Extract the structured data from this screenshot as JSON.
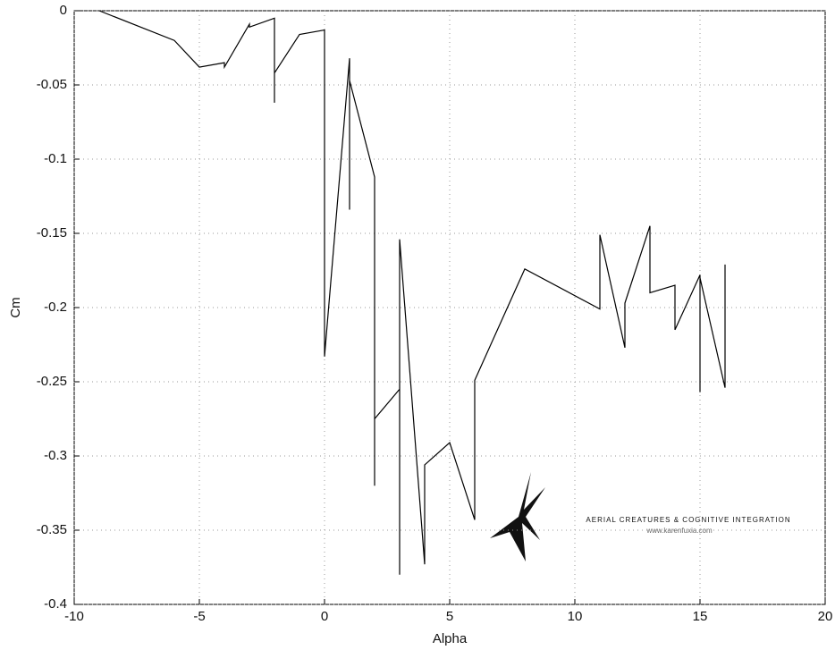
{
  "chart_data": {
    "type": "line",
    "xlabel": "Alpha",
    "ylabel": "Cm",
    "x": [
      -9,
      -6,
      -5,
      -4,
      -4,
      -3,
      -3,
      -2,
      -2,
      -2,
      -1,
      0,
      0,
      1,
      1,
      1,
      2,
      2,
      2,
      3,
      3,
      3,
      4,
      4,
      5,
      6,
      6,
      8,
      11,
      11,
      12,
      12,
      13,
      13,
      14,
      14,
      15,
      15,
      15,
      16,
      16
    ],
    "values": [
      0,
      -0.02,
      -0.038,
      -0.035,
      -0.038,
      -0.009,
      -0.011,
      -0.005,
      -0.062,
      -0.042,
      -0.016,
      -0.013,
      -0.233,
      -0.032,
      -0.134,
      -0.047,
      -0.112,
      -0.32,
      -0.275,
      -0.255,
      -0.38,
      -0.154,
      -0.373,
      -0.306,
      -0.291,
      -0.343,
      -0.249,
      -0.174,
      -0.201,
      -0.151,
      -0.227,
      -0.197,
      -0.145,
      -0.19,
      -0.185,
      -0.215,
      -0.178,
      -0.257,
      -0.18,
      -0.254,
      -0.171
    ],
    "color": "#000000",
    "xlim": [
      -10,
      20
    ],
    "xticks": [
      -10,
      -5,
      0,
      5,
      10,
      15,
      20
    ],
    "ylim": [
      -0.4,
      0
    ],
    "yticks": [
      -0.4,
      -0.35,
      -0.3,
      -0.25,
      -0.2,
      -0.15,
      -0.1,
      -0.05,
      0
    ],
    "grid": true,
    "annotations": [
      "AERIAL CREATURES & COGNITIVE INTEGRATION",
      "www.karenfuxia.com"
    ]
  }
}
